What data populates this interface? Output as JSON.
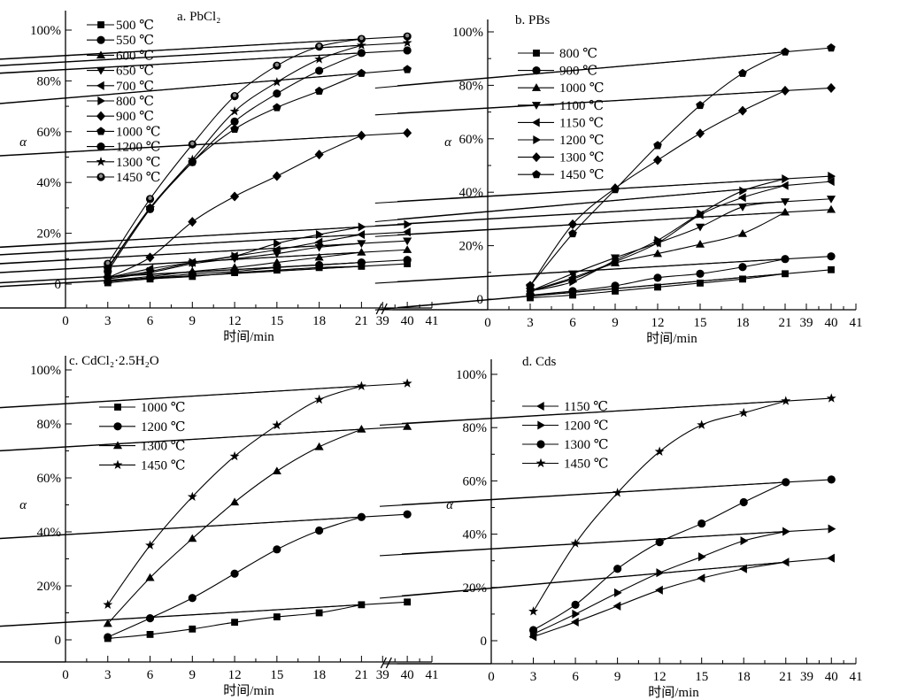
{
  "chart_data": [
    {
      "type": "line",
      "title": "a. PbCl₂",
      "xlabel": "时间/min",
      "ylabel": "α",
      "xticks": [
        "0",
        "3",
        "6",
        "9",
        "12",
        "15",
        "18",
        "21",
        "39",
        "40",
        "41"
      ],
      "yticks": [
        "0",
        "20%",
        "40%",
        "60%",
        "80%",
        "100%"
      ],
      "ylim": [
        -10,
        107
      ],
      "x": [
        3,
        6,
        9,
        12,
        15,
        18,
        21,
        40
      ],
      "legend_position": "top-left",
      "series": [
        {
          "name": "500 ℃",
          "marker": "square",
          "values": [
            0.5,
            2,
            3,
            4.5,
            5.5,
            6.5,
            7,
            8
          ]
        },
        {
          "name": "550 ℃",
          "marker": "circle",
          "values": [
            1,
            2.5,
            4,
            5,
            6.5,
            7.5,
            8.5,
            9.5
          ]
        },
        {
          "name": "600 ℃",
          "marker": "triangle-up",
          "values": [
            1.5,
            3,
            5,
            6.5,
            8.5,
            10.5,
            12.5,
            13.5
          ]
        },
        {
          "name": "650 ℃",
          "marker": "triangle-down",
          "values": [
            2,
            4.5,
            8,
            10,
            12,
            14.5,
            16,
            17
          ]
        },
        {
          "name": "700 ℃",
          "marker": "triangle-left",
          "values": [
            2.5,
            6,
            8.5,
            11,
            13.5,
            16.5,
            19.5,
            20.5
          ]
        },
        {
          "name": "800 ℃",
          "marker": "triangle-right",
          "values": [
            2.5,
            5,
            8.5,
            11,
            16,
            19.5,
            22.5,
            23.5
          ]
        },
        {
          "name": "900 ℃",
          "marker": "diamond",
          "values": [
            2.5,
            10.5,
            24.5,
            34.5,
            42.5,
            51,
            58.5,
            59.5
          ]
        },
        {
          "name": "1000 ℃",
          "marker": "pentagon",
          "values": [
            6,
            30,
            48,
            61,
            69.5,
            76,
            83,
            84.5
          ]
        },
        {
          "name": "1200 ℃",
          "marker": "circle",
          "values": [
            5,
            29.5,
            48,
            64,
            75,
            84,
            91,
            92
          ]
        },
        {
          "name": "1300 ℃",
          "marker": "star",
          "values": [
            6.5,
            30,
            49,
            68,
            79.5,
            88.5,
            94,
            95
          ]
        },
        {
          "name": "1450 ℃",
          "marker": "circle-dot",
          "values": [
            8,
            33.5,
            55,
            74,
            86,
            93.5,
            96.5,
            97.5
          ]
        }
      ]
    },
    {
      "type": "line",
      "title": "b. PBs",
      "xlabel": "时间/min",
      "ylabel": "α",
      "xticks": [
        "0",
        "3",
        "6",
        "9",
        "12",
        "15",
        "18",
        "21",
        "39",
        "40",
        "41"
      ],
      "yticks": [
        "0",
        "20%",
        "40%",
        "60%",
        "80%",
        "100%"
      ],
      "ylim": [
        -5,
        105
      ],
      "x": [
        3,
        6,
        9,
        12,
        15,
        18,
        21,
        40
      ],
      "legend_position": "top-left",
      "series": [
        {
          "name": "800 ℃",
          "marker": "square",
          "values": [
            0.5,
            1.5,
            3,
            4.5,
            6,
            7.5,
            9.5,
            11
          ]
        },
        {
          "name": "900 ℃",
          "marker": "circle",
          "values": [
            1.5,
            3,
            5,
            8,
            9.5,
            12,
            15,
            16
          ]
        },
        {
          "name": "1000 ℃",
          "marker": "triangle-up",
          "values": [
            3,
            7.5,
            13.5,
            17,
            20.5,
            24.5,
            32.5,
            33.5
          ]
        },
        {
          "name": "1100 ℃",
          "marker": "triangle-down",
          "values": [
            3,
            9.5,
            15.5,
            21,
            27,
            34.5,
            36.5,
            37.5
          ]
        },
        {
          "name": "1150 ℃",
          "marker": "triangle-left",
          "values": [
            3,
            8,
            14,
            21,
            31.5,
            38,
            42.5,
            44
          ]
        },
        {
          "name": "1200 ℃",
          "marker": "triangle-right",
          "values": [
            3,
            6.5,
            14.5,
            22,
            32,
            40.5,
            45,
            46
          ]
        },
        {
          "name": "1300 ℃",
          "marker": "diamond",
          "values": [
            5,
            28,
            41.5,
            52,
            62,
            70.5,
            78,
            79
          ]
        },
        {
          "name": "1450 ℃",
          "marker": "pentagon",
          "values": [
            5,
            24.5,
            41,
            57.5,
            72.5,
            84.5,
            92.5,
            94
          ]
        }
      ]
    },
    {
      "type": "line",
      "title": "c. CdCl₂·2.5H₂O",
      "xlabel": "时间/min",
      "ylabel": "α",
      "xticks": [
        "0",
        "3",
        "6",
        "9",
        "12",
        "15",
        "18",
        "21",
        "39",
        "40",
        "41"
      ],
      "yticks": [
        "0",
        "20%",
        "40%",
        "60%",
        "80%",
        "100%"
      ],
      "ylim": [
        -8,
        106
      ],
      "x": [
        3,
        6,
        9,
        12,
        15,
        18,
        21,
        40
      ],
      "legend_position": "top-left",
      "series": [
        {
          "name": "1000 ℃",
          "marker": "square",
          "values": [
            0.5,
            2,
            4,
            6.5,
            8.5,
            10,
            13,
            14
          ]
        },
        {
          "name": "1200 ℃",
          "marker": "circle",
          "values": [
            1,
            8,
            15.5,
            24.5,
            33.5,
            40.5,
            45.5,
            46.5
          ]
        },
        {
          "name": "1300 ℃",
          "marker": "triangle-up",
          "values": [
            6,
            23,
            37.5,
            51,
            62.5,
            71.5,
            78,
            79
          ]
        },
        {
          "name": "1450 ℃",
          "marker": "star",
          "values": [
            13,
            35,
            53,
            68,
            79.5,
            89,
            94,
            95
          ]
        }
      ]
    },
    {
      "type": "line",
      "title": "d. Cds",
      "xlabel": "时间/min",
      "ylabel": "α",
      "xticks": [
        "0",
        "3",
        "6",
        "9",
        "12",
        "15",
        "18",
        "21",
        "39",
        "40",
        "41"
      ],
      "yticks": [
        "0",
        "20%",
        "40%",
        "60%",
        "80%",
        "100%"
      ],
      "ylim": [
        -8,
        106
      ],
      "x": [
        3,
        6,
        9,
        12,
        15,
        18,
        21,
        40
      ],
      "legend_position": "top-left",
      "series": [
        {
          "name": "1150 ℃",
          "marker": "triangle-left",
          "values": [
            1.5,
            7,
            13,
            19,
            23.5,
            27,
            29.5,
            31
          ]
        },
        {
          "name": "1200 ℃",
          "marker": "triangle-right",
          "values": [
            2.5,
            10,
            18,
            25.5,
            31.5,
            37.5,
            41,
            42
          ]
        },
        {
          "name": "1300 ℃",
          "marker": "circle",
          "values": [
            4,
            13.5,
            27,
            37,
            44,
            52,
            59.5,
            60.5
          ]
        },
        {
          "name": "1450 ℃",
          "marker": "star",
          "values": [
            11,
            36.5,
            55.5,
            71,
            81,
            85.5,
            90,
            91
          ]
        }
      ]
    }
  ]
}
